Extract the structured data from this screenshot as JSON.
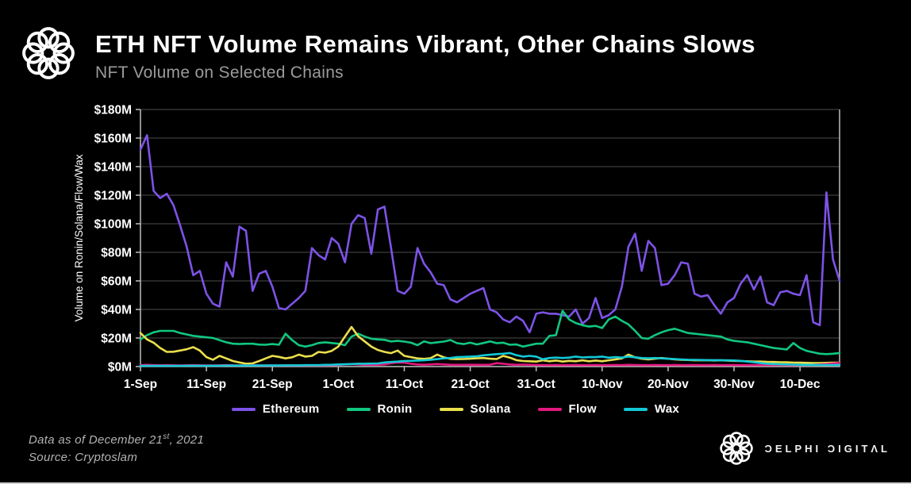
{
  "header": {
    "title": "ETH NFT Volume Remains Vibrant, Other Chains Slows",
    "subtitle": "NFT Volume on Selected Chains"
  },
  "chart_data": {
    "type": "line",
    "title": "NFT Volume on Selected Chains",
    "y_label": "Volume on Ronin/Solana/Flow/Wax",
    "y_unit": "$M",
    "ylim": [
      0,
      180
    ],
    "grid": true,
    "legend_position": "bottom",
    "x_range": {
      "start": "1-Sep-2021",
      "end": "16-Dec-2021",
      "freq": "daily"
    },
    "x_ticks": [
      {
        "index": 0,
        "label": "1-Sep"
      },
      {
        "index": 10,
        "label": "11-Sep"
      },
      {
        "index": 20,
        "label": "21-Sep"
      },
      {
        "index": 30,
        "label": "1-Oct"
      },
      {
        "index": 40,
        "label": "11-Oct"
      },
      {
        "index": 50,
        "label": "21-Oct"
      },
      {
        "index": 60,
        "label": "31-Oct"
      },
      {
        "index": 70,
        "label": "10-Nov"
      },
      {
        "index": 80,
        "label": "20-Nov"
      },
      {
        "index": 90,
        "label": "30-Nov"
      },
      {
        "index": 100,
        "label": "10-Dec"
      }
    ],
    "y_ticks": {
      "values": [
        0,
        20,
        40,
        60,
        80,
        100,
        120,
        140,
        160,
        180
      ],
      "labels": [
        "$0M",
        "$20M",
        "$40M",
        "$60M",
        "$80M",
        "$100M",
        "$120M",
        "$140M",
        "$160M",
        "$180M"
      ]
    },
    "series": [
      {
        "name": "Ethereum",
        "color": "#7d53e6",
        "values": [
          152,
          162,
          123,
          118,
          121,
          113,
          99,
          84,
          64,
          67,
          51,
          44,
          42,
          73,
          63,
          98,
          95,
          53,
          65,
          67,
          56,
          41,
          40,
          44,
          48,
          53,
          83,
          78,
          75,
          90,
          86,
          73,
          100,
          106,
          104,
          79,
          110,
          112,
          83,
          53,
          51,
          56,
          83,
          72,
          66,
          58,
          57,
          47,
          45,
          48,
          51,
          53,
          55,
          40,
          38,
          33,
          31,
          35,
          32,
          24,
          37,
          38,
          37,
          37,
          36,
          35,
          40,
          30,
          34,
          48,
          34,
          36,
          40,
          56,
          84,
          93,
          67,
          88,
          83,
          57,
          58,
          64,
          73,
          72,
          51,
          49,
          50,
          43,
          37,
          45,
          48,
          58,
          64,
          54,
          63,
          45,
          43,
          52,
          53,
          51,
          50,
          64,
          31,
          29,
          122,
          75,
          60
        ]
      },
      {
        "name": "Ronin",
        "color": "#11c780",
        "values": [
          19,
          22,
          24,
          25,
          25,
          25,
          23.5,
          22.5,
          21.5,
          21,
          20.5,
          20,
          18.5,
          17,
          16,
          15.8,
          16,
          16,
          15.4,
          15.3,
          15.8,
          15.3,
          23,
          18.5,
          15,
          14,
          15,
          16.5,
          17,
          16.5,
          16,
          15,
          21,
          23,
          21,
          19.5,
          19,
          18.7,
          17.6,
          18,
          17.5,
          16.7,
          15,
          17.6,
          16.4,
          17,
          17.5,
          18.6,
          16.4,
          15.8,
          16.7,
          15.5,
          16.5,
          17.6,
          16.4,
          16.7,
          15.3,
          15.5,
          14,
          15,
          16,
          16,
          21.5,
          22,
          39,
          33,
          30.5,
          29,
          28,
          28.5,
          27,
          33,
          35,
          32,
          29.5,
          25,
          20,
          19.5,
          22,
          24,
          25.5,
          26.5,
          25,
          23.5,
          23,
          22.5,
          22,
          21.5,
          21,
          19,
          18,
          17.5,
          17,
          16,
          15,
          14,
          13,
          12.5,
          12,
          16.5,
          13,
          11,
          10,
          9,
          8.7,
          9,
          9.5
        ]
      },
      {
        "name": "Solana",
        "color": "#ebdf4d",
        "values": [
          23.5,
          19,
          16.7,
          13,
          10.3,
          10.4,
          11.2,
          12.1,
          13.6,
          11.2,
          6.6,
          4.8,
          7.5,
          5.7,
          3.9,
          2.9,
          2,
          2.2,
          3.9,
          5.7,
          7.5,
          6.8,
          5.7,
          6.5,
          8.4,
          7,
          7.5,
          10.3,
          9.7,
          11,
          14,
          21,
          27.7,
          21.3,
          17.6,
          14,
          11.6,
          10.3,
          9.4,
          11.2,
          7.5,
          6.6,
          5.7,
          5.4,
          5.9,
          8.4,
          6.5,
          5.4,
          5.2,
          5.3,
          5.5,
          5.8,
          6,
          5.5,
          5.3,
          7.5,
          6.3,
          4.5,
          3.9,
          3.7,
          3.5,
          4.4,
          3.7,
          4.2,
          3.5,
          4,
          3.7,
          4.4,
          3.7,
          4.2,
          3.7,
          4.4,
          5,
          5.7,
          8.4,
          6.5,
          5.5,
          5,
          5.5,
          6,
          5.5,
          5,
          4.8,
          4.6,
          4.4,
          4.5,
          4.4,
          4.3,
          4.4,
          4.2,
          4,
          3.9,
          3.7,
          3.5,
          3.5,
          3.3,
          3.2,
          3,
          3,
          2.8,
          2.7,
          2.6,
          2.5,
          2.5,
          2.6,
          2.7,
          2.8
        ]
      },
      {
        "name": "Flow",
        "color": "#e2187d",
        "values": [
          1,
          1.2,
          1,
          0.9,
          1,
          0.9,
          0.8,
          0.9,
          1,
          0.9,
          0.8,
          0.8,
          0.9,
          1,
          0.9,
          0.8,
          0.8,
          0.9,
          0.8,
          0.8,
          0.9,
          0.8,
          0.8,
          0.9,
          0.8,
          0.8,
          0.9,
          0.8,
          0.9,
          1,
          1.2,
          1.5,
          1.8,
          1.5,
          1.2,
          1.2,
          1.3,
          1.5,
          2.4,
          2.9,
          2.7,
          2,
          1.5,
          1.3,
          1.5,
          1.8,
          1.5,
          1.3,
          1.2,
          1.2,
          1.3,
          1.2,
          1.2,
          1.3,
          2.4,
          2,
          1.5,
          1.2,
          1.4,
          1.2,
          1.1,
          1,
          1,
          1.1,
          1,
          1,
          1.1,
          1,
          1,
          1.1,
          1,
          1,
          1.1,
          1,
          1.2,
          1.1,
          1,
          1,
          1.1,
          1,
          1,
          1.1,
          1,
          1,
          1.1,
          1,
          1,
          1.1,
          1,
          1,
          1.1,
          1,
          1,
          1,
          1.1,
          1,
          1,
          1.1,
          1,
          1,
          1.1,
          1.2,
          1.3,
          1.5,
          1.8,
          2.2,
          2.6
        ]
      },
      {
        "name": "Wax",
        "color": "#12c9d6",
        "values": [
          0.5,
          0.5,
          0.5,
          0.5,
          0.5,
          0.5,
          0.5,
          0.6,
          0.6,
          0.6,
          0.6,
          0.6,
          0.6,
          0.7,
          0.7,
          0.7,
          0.7,
          0.7,
          0.8,
          0.8,
          0.8,
          0.8,
          0.9,
          0.9,
          0.9,
          1,
          1,
          1,
          1.2,
          1.3,
          1.5,
          1.6,
          1.8,
          2,
          2,
          2.1,
          2.2,
          2.9,
          3.2,
          3.5,
          3.9,
          4,
          4.2,
          4.4,
          4.8,
          5.2,
          5.7,
          6,
          6.6,
          6.8,
          7,
          7.2,
          7.9,
          8.3,
          8.7,
          9,
          9.5,
          8,
          7,
          7.5,
          7,
          5.1,
          6,
          6.3,
          6,
          6.3,
          7,
          6.4,
          6.6,
          6.6,
          7,
          6.2,
          6.6,
          6.3,
          7,
          6.5,
          6,
          5.8,
          6,
          5.7,
          5.5,
          5.2,
          5,
          4.8,
          4.7,
          4.6,
          4.5,
          4.5,
          4.4,
          4.4,
          4.3,
          4,
          3.5,
          3,
          2.5,
          2,
          1.8,
          1.6,
          1.5,
          1.4,
          1.3,
          1.2,
          1.2,
          1.1,
          1.1,
          1.1,
          1.2
        ]
      }
    ]
  },
  "footer": {
    "line1_prefix": "Data as of December 21",
    "line1_sup": "st",
    "line1_suffix": ", 2021",
    "line2": "Source:  Cryptoslam"
  },
  "brand": {
    "wordmark": "ƆELPHI ƆIGITΛL"
  },
  "style": {
    "background": "#000000",
    "gridline": "#4d4d4d",
    "axis_frame": "#bdbdbd",
    "tick_text": "#ffffff",
    "subtitle_gray": "#9b9b9b",
    "footer_gray": "#b3b3b3"
  }
}
